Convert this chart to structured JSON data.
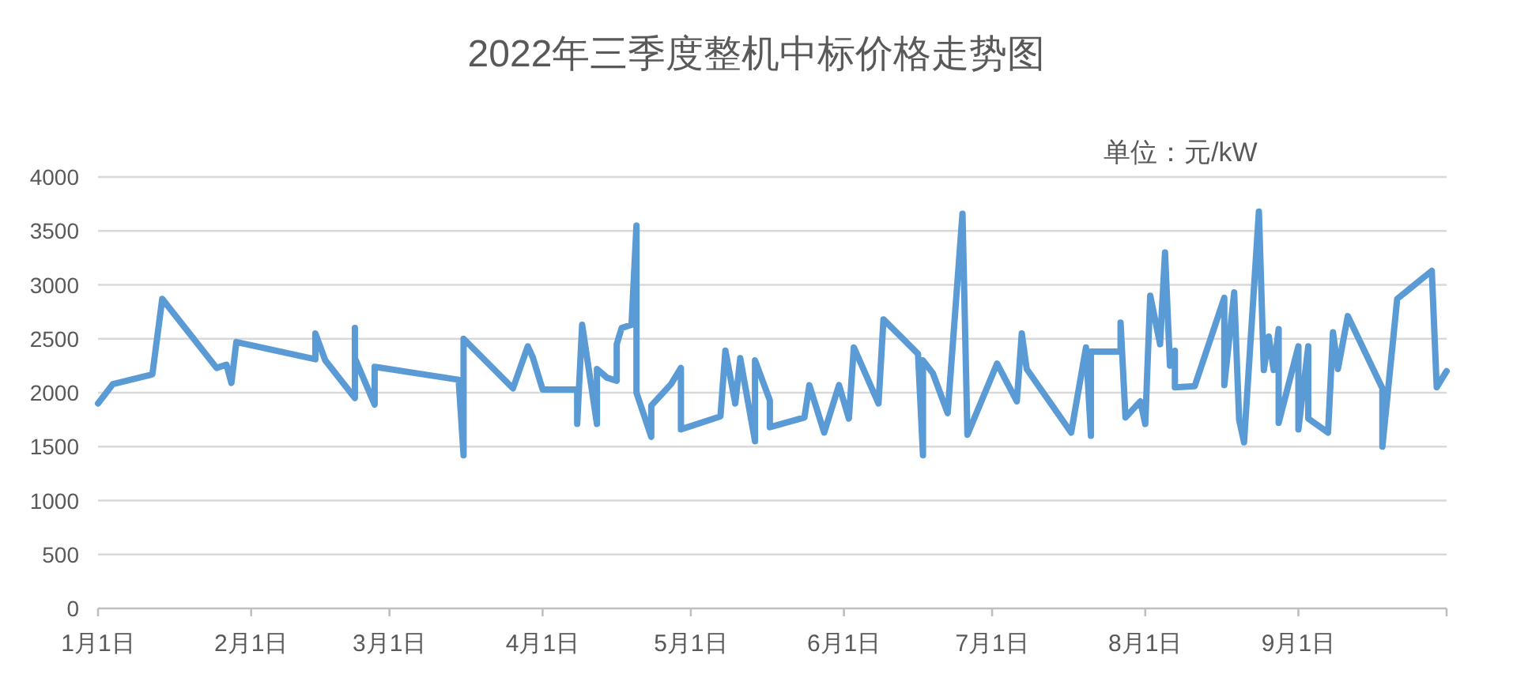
{
  "chart_data": {
    "type": "line",
    "title": "2022年三季度整机中标价格走势图",
    "annotations": [
      "单位：元/kW"
    ],
    "x": [
      "--01-01",
      "--01-04",
      "--01-12",
      "--01-14",
      "--01-25",
      "--01-27",
      "--01-28",
      "--01-29",
      "--02-14",
      "--02-14",
      "--02-16",
      "--02-22",
      "--02-22",
      "--02-22",
      "--02-26",
      "--02-26",
      "--03-15",
      "--03-16",
      "--03-16",
      "--03-26",
      "--03-29",
      "--03-30",
      "--04-01",
      "--04-08",
      "--04-08",
      "--04-09",
      "--04-12",
      "--04-12",
      "--04-14",
      "--04-16",
      "--04-16",
      "--04-17",
      "--04-19",
      "--04-20",
      "--04-20",
      "--04-23",
      "--04-23",
      "--04-27",
      "--04-29",
      "--04-29",
      "--05-07",
      "--05-08",
      "--05-10",
      "--05-11",
      "--05-14",
      "--05-14",
      "--05-17",
      "--05-17",
      "--05-24",
      "--05-25",
      "--05-28",
      "--05-31",
      "--06-02",
      "--06-03",
      "--06-08",
      "--06-09",
      "--06-16",
      "--06-17",
      "--06-17",
      "--06-19",
      "--06-22",
      "--06-25",
      "--06-26",
      "--07-02",
      "--07-06",
      "--07-07",
      "--07-08",
      "--07-17",
      "--07-20",
      "--07-21",
      "--07-21",
      "--07-27",
      "--07-27",
      "--07-28",
      "--07-31",
      "--08-01",
      "--08-02",
      "--08-04",
      "--08-05",
      "--08-06",
      "--08-07",
      "--08-07",
      "--08-11",
      "--08-17",
      "--08-17",
      "--08-19",
      "--08-20",
      "--08-21",
      "--08-24",
      "--08-25",
      "--08-26",
      "--08-27",
      "--08-28",
      "--08-28",
      "--09-01",
      "--09-01",
      "--09-03",
      "--09-03",
      "--09-07",
      "--09-08",
      "--09-09",
      "--09-11",
      "--09-18",
      "--09-18",
      "--09-21",
      "--09-28",
      "--09-29",
      "--10-01"
    ],
    "series": [
      {
        "color": "#5b9bd5",
        "values": [
          1900,
          2080,
          2170,
          2870,
          2230,
          2260,
          2090,
          2470,
          2310,
          2550,
          2300,
          1950,
          2600,
          2320,
          1890,
          2240,
          2120,
          1420,
          2500,
          2040,
          2430,
          2330,
          2030,
          2030,
          1710,
          2630,
          1710,
          2220,
          2140,
          2110,
          2450,
          2600,
          2630,
          3550,
          2000,
          1590,
          1880,
          2080,
          2230,
          1660,
          1780,
          2390,
          1900,
          2320,
          1550,
          2300,
          1930,
          1680,
          1770,
          2070,
          1630,
          2070,
          1760,
          2420,
          1900,
          2680,
          2360,
          1420,
          2300,
          2180,
          1810,
          3660,
          1610,
          2270,
          1920,
          2550,
          2220,
          1630,
          2420,
          1600,
          2380,
          2380,
          2650,
          1770,
          1920,
          1710,
          2900,
          2450,
          3300,
          2250,
          2390,
          2050,
          2060,
          2880,
          2070,
          2930,
          1750,
          1540,
          3680,
          2210,
          2520,
          2210,
          2590,
          1720,
          2430,
          1660,
          2430,
          1760,
          1630,
          2560,
          2220,
          2710,
          2040,
          1500,
          2870,
          3130,
          2050,
          2200
        ]
      }
    ],
    "xlim": [
      "--01-01",
      "--10-01"
    ],
    "xticks": [
      {
        "value": "--01-01",
        "label": "1月1日"
      },
      {
        "value": "--02-01",
        "label": "2月1日"
      },
      {
        "value": "--03-01",
        "label": "3月1日"
      },
      {
        "value": "--04-01",
        "label": "4月1日"
      },
      {
        "value": "--05-01",
        "label": "5月1日"
      },
      {
        "value": "--06-01",
        "label": "6月1日"
      },
      {
        "value": "--07-01",
        "label": "7月1日"
      },
      {
        "value": "--08-01",
        "label": "8月1日"
      },
      {
        "value": "--09-01",
        "label": "9月1日"
      },
      {
        "value": "--10-01",
        "label": null
      }
    ],
    "ylim": [
      0,
      4000
    ],
    "yticks": [
      0,
      500,
      1000,
      1500,
      2000,
      2500,
      3000,
      3500,
      4000
    ],
    "grid": "y",
    "marker": "none",
    "line_style": "solid"
  }
}
